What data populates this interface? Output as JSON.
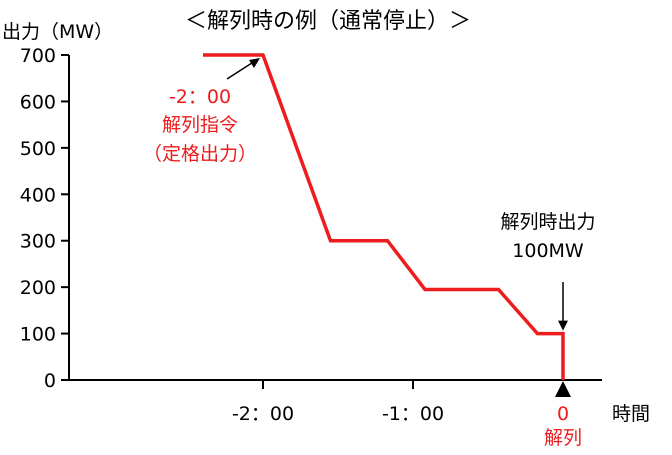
{
  "chart_data": {
    "type": "line",
    "title": "＜解列時の例（通常停止）＞",
    "ylabel": "出力（MW）",
    "xlabel": "時間",
    "ylim": [
      0,
      700
    ],
    "xlim": [
      -2.7,
      0.4
    ],
    "yticks": [
      0,
      100,
      200,
      300,
      400,
      500,
      600,
      700
    ],
    "xticks": [
      {
        "value": -2,
        "label": "-2：00",
        "color": "#000000"
      },
      {
        "value": -1,
        "label": "-1：00",
        "color": "#000000"
      },
      {
        "value": 0,
        "label": "0",
        "color": "#ee1c1c"
      }
    ],
    "series": [
      {
        "color": "#ee1c1c",
        "points": [
          [
            -2.4,
            700
          ],
          [
            -2.0,
            700
          ],
          [
            -1.55,
            300
          ],
          [
            -1.17,
            300
          ],
          [
            -0.92,
            195
          ],
          [
            -0.43,
            195
          ],
          [
            -0.17,
            100
          ],
          [
            0,
            100
          ],
          [
            0,
            0
          ]
        ]
      }
    ],
    "annotations": {
      "dispatch": {
        "lines": [
          "-2：00",
          "解列指令",
          "（定格出力）"
        ],
        "color": "#ee1c1c",
        "arrow_to": [
          -2.0,
          700
        ]
      },
      "parallel_off_output": {
        "lines": [
          "解列時出力",
          "100MW"
        ],
        "color": "#000000",
        "arrow_to": [
          0,
          100
        ]
      },
      "parallel_off": {
        "label": "解列",
        "color": "#ee1c1c",
        "at": 0
      }
    },
    "grid": false
  }
}
